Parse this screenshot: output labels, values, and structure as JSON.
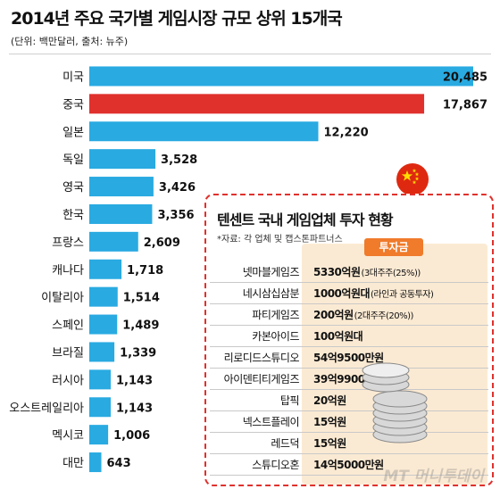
{
  "title": "2014년 주요 국가별 게임시장 규모 상위 15개국",
  "subtitle": "(단위: 백만달러, 출처: 뉴주)",
  "colors": {
    "bar": "#29aae1",
    "highlight": "#e0312d",
    "panel_border": "#e0312d",
    "investment_header": "#ef7b2b"
  },
  "chart_data": {
    "type": "bar",
    "orientation": "horizontal",
    "title": "2014년 주요 국가별 게임시장 규모 상위 15개국",
    "unit": "백만달러",
    "categories": [
      "미국",
      "중국",
      "일본",
      "독일",
      "영국",
      "한국",
      "프랑스",
      "캐나다",
      "이탈리아",
      "스페인",
      "브라질",
      "러시아",
      "오스트레일리아",
      "멕시코",
      "대만"
    ],
    "values": [
      20485,
      17867,
      12220,
      3528,
      3426,
      3356,
      2609,
      1718,
      1514,
      1489,
      1339,
      1143,
      1143,
      1006,
      643
    ],
    "value_labels": [
      "20,485",
      "17,867",
      "12,220",
      "3,528",
      "3,426",
      "3,356",
      "2,609",
      "1,718",
      "1,514",
      "1,489",
      "1,339",
      "1,143",
      "1,143",
      "1,006",
      "643"
    ],
    "highlight": "중국",
    "xlim": [
      0,
      20485
    ],
    "grid": false,
    "legend": "none"
  },
  "tencent_panel": {
    "title": "텐센트 국내 게임업체 투자 현황",
    "source": "*자료: 각 업체 및 캡스톤파트너스",
    "investment_header": "투자금",
    "rows": [
      {
        "company": "넷마블게임즈",
        "amount": "5330억원",
        "note": "(3대주주(25%))"
      },
      {
        "company": "네시삼십삼분",
        "amount": "1000억원대",
        "note": "(라인과 공동투자)"
      },
      {
        "company": "파티게임즈",
        "amount": "200억원",
        "note": "(2대주주(20%))"
      },
      {
        "company": "카본아이드",
        "amount": "100억원대",
        "note": ""
      },
      {
        "company": "리로디드스튜디오",
        "amount": "54억9500만원",
        "note": ""
      },
      {
        "company": "아이덴티티게임즈",
        "amount": "39억9900만원",
        "note": ""
      },
      {
        "company": "탑픽",
        "amount": "20억원",
        "note": ""
      },
      {
        "company": "넥스트플레이",
        "amount": "15억원",
        "note": ""
      },
      {
        "company": "레드덕",
        "amount": "15억원",
        "note": ""
      },
      {
        "company": "스튜디오혼",
        "amount": "14억5000만원",
        "note": ""
      }
    ]
  },
  "icons": {
    "flag": "china-flag-icon",
    "coins": "coin-stack-icon"
  },
  "watermark": "MT 머니투데이"
}
